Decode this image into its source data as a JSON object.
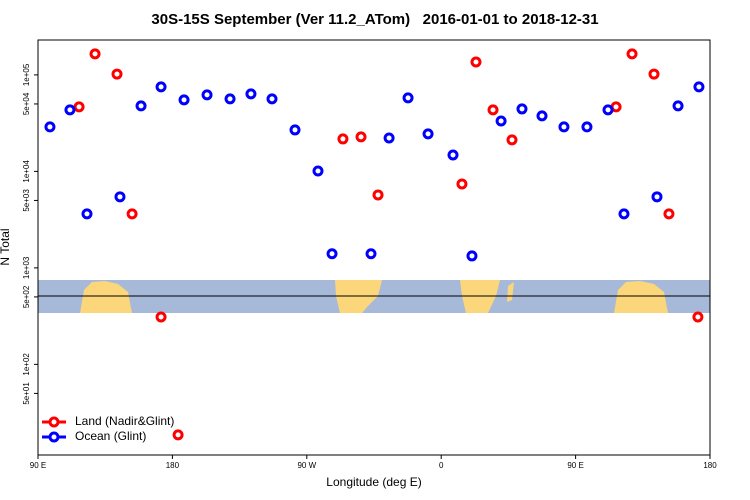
{
  "chart_data": {
    "type": "scatter",
    "title": "30S-15S September (Ver 11.2_ATom)   2016-01-01 to 2018-12-31",
    "x_label": "Longitude (deg E)",
    "y_label": "N Total",
    "log_y": true,
    "legend": "bottom-left",
    "xlim": [
      90,
      540
    ],
    "ylim": [
      11.5,
      230000
    ],
    "xticks": [
      {
        "value": 90,
        "label": "90 E"
      },
      {
        "value": 180,
        "label": "180"
      },
      {
        "value": 270,
        "label": "90 W"
      },
      {
        "value": 360,
        "label": "0"
      },
      {
        "value": 450,
        "label": "90 E"
      },
      {
        "value": 540,
        "label": "180"
      }
    ],
    "yticks": [
      {
        "value": 50,
        "label": "5e+01"
      },
      {
        "value": 100,
        "label": "1e+02"
      },
      {
        "value": 500,
        "label": "5e+02"
      },
      {
        "value": 1000,
        "label": "1e+03"
      },
      {
        "value": 5000,
        "label": "5e+03"
      },
      {
        "value": 10000,
        "label": "1e+04"
      },
      {
        "value": 50000,
        "label": "5e+04"
      },
      {
        "value": 100000,
        "label": "1e+05"
      }
    ],
    "series": [
      {
        "name": "Land (Nadir&Glint)",
        "color": "#ff0000",
        "x": [
          117.5,
          128.2,
          142.9,
          153.0,
          172.4,
          183.8,
          294.2,
          306.3,
          317.7,
          373.9,
          383.3,
          394.7,
          407.4,
          477.1,
          487.8,
          502.5,
          512.5,
          531.9
        ],
        "values": [
          46600,
          165000,
          102000,
          3630,
          310,
          18.6,
          21700,
          22800,
          5700,
          7410,
          136000,
          43400,
          21200,
          46600,
          165000,
          102000,
          3630,
          310
        ]
      },
      {
        "name": "Ocean (Glint)",
        "color": "#0000ff",
        "x": [
          98.0,
          111.4,
          122.8,
          144.9,
          159.0,
          172.4,
          187.8,
          203.2,
          218.6,
          232.6,
          246.7,
          262.1,
          277.5,
          286.9,
          313.0,
          325.1,
          337.8,
          351.2,
          367.9,
          380.6,
          400.1,
          414.1,
          427.5,
          442.2,
          457.6,
          471.7,
          482.4,
          504.5,
          518.6,
          532.6
        ],
        "values": [
          28900,
          43400,
          3630,
          5450,
          47800,
          75100,
          55100,
          62100,
          56400,
          63600,
          56400,
          26900,
          10100,
          1400,
          1400,
          22200,
          57800,
          24500,
          14800,
          1330,
          33300,
          44400,
          37600,
          28900,
          28900,
          43400,
          3630,
          5450,
          47800,
          75100
        ]
      }
    ]
  }
}
